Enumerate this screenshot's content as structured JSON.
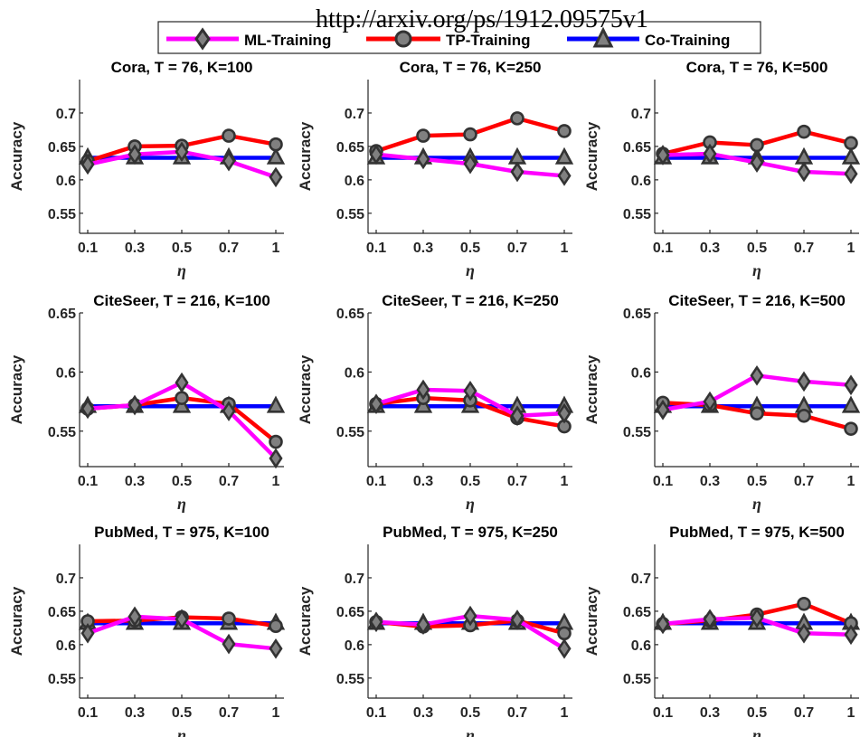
{
  "watermark": "http://arxiv.org/ps/1912.09575v1",
  "legend": {
    "entries": [
      {
        "label": "ML-Training",
        "color": "#ff00ff",
        "marker": "diamond"
      },
      {
        "label": "TP-Training",
        "color": "#ff0000",
        "marker": "circle"
      },
      {
        "label": "Co-Training",
        "color": "#0000ff",
        "marker": "triangle"
      }
    ]
  },
  "chart_data": [
    {
      "type": "line",
      "title": "Cora, T = 76, K=100",
      "xlabel": "η",
      "ylabel": "Accuracy",
      "categories": [
        "0.1",
        "0.3",
        "0.5",
        "0.7",
        "1"
      ],
      "ylim": [
        0.52,
        0.75
      ],
      "yticks": [
        0.55,
        0.6,
        0.65,
        0.7
      ],
      "ytick_labels": [
        "0.55",
        "0.6",
        "0.65",
        "0.7"
      ],
      "series": [
        {
          "name": "ML-Training",
          "values": [
            0.623,
            0.638,
            0.642,
            0.628,
            0.604
          ]
        },
        {
          "name": "TP-Training",
          "values": [
            0.628,
            0.65,
            0.651,
            0.666,
            0.653
          ]
        },
        {
          "name": "Co-Training",
          "values": [
            0.633,
            0.633,
            0.633,
            0.633,
            0.633
          ]
        }
      ]
    },
    {
      "type": "line",
      "title": "Cora, T = 76, K=250",
      "xlabel": "η",
      "ylabel": "Accuracy",
      "categories": [
        "0.1",
        "0.3",
        "0.5",
        "0.7",
        "1"
      ],
      "ylim": [
        0.52,
        0.75
      ],
      "yticks": [
        0.55,
        0.6,
        0.65,
        0.7
      ],
      "ytick_labels": [
        "0.55",
        "0.6",
        "0.65",
        "0.7"
      ],
      "series": [
        {
          "name": "ML-Training",
          "values": [
            0.638,
            0.631,
            0.624,
            0.612,
            0.606
          ]
        },
        {
          "name": "TP-Training",
          "values": [
            0.643,
            0.666,
            0.668,
            0.692,
            0.673
          ]
        },
        {
          "name": "Co-Training",
          "values": [
            0.633,
            0.633,
            0.633,
            0.633,
            0.633
          ]
        }
      ]
    },
    {
      "type": "line",
      "title": "Cora, T = 76, K=500",
      "xlabel": "η",
      "ylabel": "Accuracy",
      "categories": [
        "0.1",
        "0.3",
        "0.5",
        "0.7",
        "1"
      ],
      "ylim": [
        0.52,
        0.75
      ],
      "yticks": [
        0.55,
        0.6,
        0.65,
        0.7
      ],
      "ytick_labels": [
        "0.55",
        "0.6",
        "0.65",
        "0.7"
      ],
      "series": [
        {
          "name": "ML-Training",
          "values": [
            0.637,
            0.639,
            0.626,
            0.612,
            0.609
          ]
        },
        {
          "name": "TP-Training",
          "values": [
            0.639,
            0.656,
            0.652,
            0.672,
            0.655
          ]
        },
        {
          "name": "Co-Training",
          "values": [
            0.633,
            0.633,
            0.633,
            0.633,
            0.633
          ]
        }
      ]
    },
    {
      "type": "line",
      "title": "CiteSeer, T = 216, K=100",
      "xlabel": "η",
      "ylabel": "Accuracy",
      "categories": [
        "0.1",
        "0.3",
        "0.5",
        "0.7",
        "1"
      ],
      "ylim": [
        0.52,
        0.65
      ],
      "yticks": [
        0.55,
        0.6,
        0.65
      ],
      "ytick_labels": [
        "0.55",
        "0.6",
        "0.65"
      ],
      "series": [
        {
          "name": "ML-Training",
          "values": [
            0.569,
            0.572,
            0.591,
            0.567,
            0.527
          ]
        },
        {
          "name": "TP-Training",
          "values": [
            0.569,
            0.572,
            0.578,
            0.573,
            0.541
          ]
        },
        {
          "name": "Co-Training",
          "values": [
            0.571,
            0.571,
            0.571,
            0.571,
            0.571
          ]
        }
      ]
    },
    {
      "type": "line",
      "title": "CiteSeer, T = 216, K=250",
      "xlabel": "η",
      "ylabel": "Accuracy",
      "categories": [
        "0.1",
        "0.3",
        "0.5",
        "0.7",
        "1"
      ],
      "ylim": [
        0.52,
        0.65
      ],
      "yticks": [
        0.55,
        0.6,
        0.65
      ],
      "ytick_labels": [
        "0.55",
        "0.6",
        "0.65"
      ],
      "series": [
        {
          "name": "ML-Training",
          "values": [
            0.573,
            0.585,
            0.584,
            0.563,
            0.565
          ]
        },
        {
          "name": "TP-Training",
          "values": [
            0.573,
            0.578,
            0.576,
            0.561,
            0.554
          ]
        },
        {
          "name": "Co-Training",
          "values": [
            0.571,
            0.571,
            0.571,
            0.571,
            0.571
          ]
        }
      ]
    },
    {
      "type": "line",
      "title": "CiteSeer, T = 216, K=500",
      "xlabel": "η",
      "ylabel": "Accuracy",
      "categories": [
        "0.1",
        "0.3",
        "0.5",
        "0.7",
        "1"
      ],
      "ylim": [
        0.52,
        0.65
      ],
      "yticks": [
        0.55,
        0.6,
        0.65
      ],
      "ytick_labels": [
        "0.55",
        "0.6",
        "0.65"
      ],
      "series": [
        {
          "name": "ML-Training",
          "values": [
            0.568,
            0.575,
            0.597,
            0.592,
            0.589
          ]
        },
        {
          "name": "TP-Training",
          "values": [
            0.574,
            0.572,
            0.565,
            0.563,
            0.552
          ]
        },
        {
          "name": "Co-Training",
          "values": [
            0.571,
            0.571,
            0.571,
            0.571,
            0.571
          ]
        }
      ]
    },
    {
      "type": "line",
      "title": "PubMed, T = 975, K=100",
      "xlabel": "η",
      "ylabel": "Accuracy",
      "categories": [
        "0.1",
        "0.3",
        "0.5",
        "0.7",
        "1"
      ],
      "ylim": [
        0.52,
        0.75
      ],
      "yticks": [
        0.55,
        0.6,
        0.65,
        0.7
      ],
      "ytick_labels": [
        "0.55",
        "0.6",
        "0.65",
        "0.7"
      ],
      "series": [
        {
          "name": "ML-Training",
          "values": [
            0.617,
            0.642,
            0.638,
            0.601,
            0.594
          ]
        },
        {
          "name": "TP-Training",
          "values": [
            0.635,
            0.636,
            0.641,
            0.639,
            0.628
          ]
        },
        {
          "name": "Co-Training",
          "values": [
            0.632,
            0.632,
            0.632,
            0.632,
            0.632
          ]
        }
      ]
    },
    {
      "type": "line",
      "title": "PubMed, T = 975, K=250",
      "xlabel": "η",
      "ylabel": "Accuracy",
      "categories": [
        "0.1",
        "0.3",
        "0.5",
        "0.7",
        "1"
      ],
      "ylim": [
        0.52,
        0.75
      ],
      "yticks": [
        0.55,
        0.6,
        0.65,
        0.7
      ],
      "ytick_labels": [
        "0.55",
        "0.6",
        "0.65",
        "0.7"
      ],
      "series": [
        {
          "name": "ML-Training",
          "values": [
            0.634,
            0.63,
            0.643,
            0.637,
            0.594
          ]
        },
        {
          "name": "TP-Training",
          "values": [
            0.634,
            0.627,
            0.629,
            0.636,
            0.617
          ]
        },
        {
          "name": "Co-Training",
          "values": [
            0.632,
            0.632,
            0.632,
            0.632,
            0.632
          ]
        }
      ]
    },
    {
      "type": "line",
      "title": "PubMed, T = 975, K=500",
      "xlabel": "η",
      "ylabel": "Accuracy",
      "categories": [
        "0.1",
        "0.3",
        "0.5",
        "0.7",
        "1"
      ],
      "ylim": [
        0.52,
        0.75
      ],
      "yticks": [
        0.55,
        0.6,
        0.65,
        0.7
      ],
      "ytick_labels": [
        "0.55",
        "0.6",
        "0.65",
        "0.7"
      ],
      "series": [
        {
          "name": "ML-Training",
          "values": [
            0.631,
            0.638,
            0.64,
            0.617,
            0.615
          ]
        },
        {
          "name": "TP-Training",
          "values": [
            0.631,
            0.636,
            0.645,
            0.661,
            0.632
          ]
        },
        {
          "name": "Co-Training",
          "values": [
            0.632,
            0.632,
            0.632,
            0.632,
            0.632
          ]
        }
      ]
    }
  ]
}
